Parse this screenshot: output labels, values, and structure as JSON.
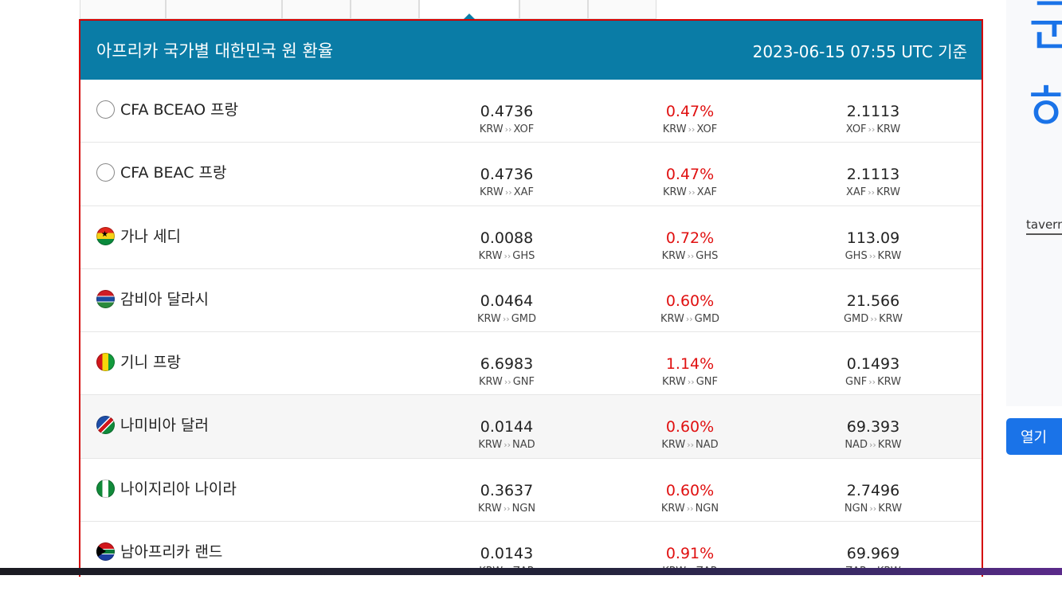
{
  "panel": {
    "title": "아프리카 국가별 대한민국 원 환율",
    "timestamp": "2023-06-15 07:55 UTC 기준"
  },
  "rows": [
    {
      "name": "CFA BCEAO 프랑",
      "flag": "empty",
      "rate": "0.4736",
      "rate_pair": [
        "KRW",
        "XOF"
      ],
      "change": "0.47%",
      "change_pair": [
        "KRW",
        "XOF"
      ],
      "inverse": "2.1113",
      "inverse_pair": [
        "XOF",
        "KRW"
      ]
    },
    {
      "name": "CFA BEAC 프랑",
      "flag": "empty",
      "rate": "0.4736",
      "rate_pair": [
        "KRW",
        "XAF"
      ],
      "change": "0.47%",
      "change_pair": [
        "KRW",
        "XAF"
      ],
      "inverse": "2.1113",
      "inverse_pair": [
        "XAF",
        "KRW"
      ]
    },
    {
      "name": "가나 세디",
      "flag": "ghana",
      "rate": "0.0088",
      "rate_pair": [
        "KRW",
        "GHS"
      ],
      "change": "0.72%",
      "change_pair": [
        "KRW",
        "GHS"
      ],
      "inverse": "113.09",
      "inverse_pair": [
        "GHS",
        "KRW"
      ]
    },
    {
      "name": "감비아 달라시",
      "flag": "gambia",
      "rate": "0.0464",
      "rate_pair": [
        "KRW",
        "GMD"
      ],
      "change": "0.60%",
      "change_pair": [
        "KRW",
        "GMD"
      ],
      "inverse": "21.566",
      "inverse_pair": [
        "GMD",
        "KRW"
      ]
    },
    {
      "name": "기니 프랑",
      "flag": "guinea",
      "rate": "6.6983",
      "rate_pair": [
        "KRW",
        "GNF"
      ],
      "change": "1.14%",
      "change_pair": [
        "KRW",
        "GNF"
      ],
      "inverse": "0.1493",
      "inverse_pair": [
        "GNF",
        "KRW"
      ]
    },
    {
      "name": "나미비아 달러",
      "flag": "namibia",
      "rate": "0.0144",
      "rate_pair": [
        "KRW",
        "NAD"
      ],
      "change": "0.60%",
      "change_pair": [
        "KRW",
        "NAD"
      ],
      "inverse": "69.393",
      "inverse_pair": [
        "NAD",
        "KRW"
      ]
    },
    {
      "name": "나이지리아 나이라",
      "flag": "nigeria",
      "rate": "0.3637",
      "rate_pair": [
        "KRW",
        "NGN"
      ],
      "change": "0.60%",
      "change_pair": [
        "KRW",
        "NGN"
      ],
      "inverse": "2.7496",
      "inverse_pair": [
        "NGN",
        "KRW"
      ]
    },
    {
      "name": "남아프리카 랜드",
      "flag": "southafrica",
      "rate": "0.0143",
      "rate_pair": [
        "KRW",
        "ZAR"
      ],
      "change": "0.91%",
      "change_pair": [
        "KRW",
        "ZAR"
      ],
      "inverse": "69.969",
      "inverse_pair": [
        "ZAR",
        "KRW"
      ]
    }
  ],
  "ad": {
    "headline_line1": "군",
    "headline_line2": "하",
    "domain": "taverna",
    "open_button": "열기"
  },
  "colors": {
    "header_bg": "#0a7ca6",
    "change_text": "#e01010",
    "border_highlight": "#d40000",
    "ad_accent": "#1a73e8"
  }
}
